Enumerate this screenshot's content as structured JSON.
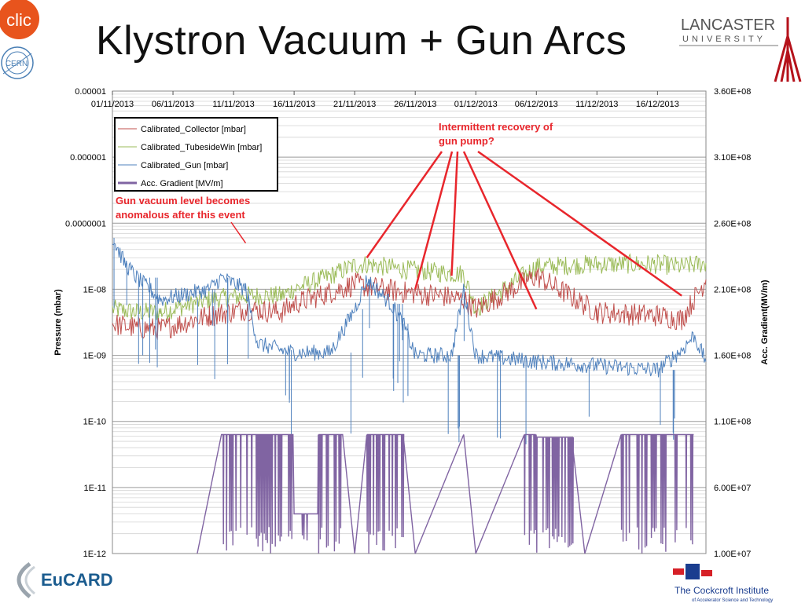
{
  "slide": {
    "title": "Klystron Vacuum + Gun Arcs",
    "logos": {
      "clic": "clic",
      "cern": "CERN",
      "lancaster_line1": "LANCASTER",
      "lancaster_line2": "UNIVERSITY",
      "eucard": "EuCARD",
      "cockcroft_line1": "The Cockcroft Institute",
      "cockcroft_line2": "of Accelerator Science and Technology"
    }
  },
  "colors": {
    "collector": "#c0504d",
    "tubeside": "#9bbb59",
    "gun": "#4f81bd",
    "gradient": "#8064a2",
    "annotation": "#e8262c"
  },
  "chart_data": {
    "type": "line",
    "title": "",
    "xlabel": "",
    "ylabel": "Pressure (mbar)",
    "y2label": "Acc. Gradient(MV/m)",
    "yscale": "log",
    "ylim": [
      1e-12,
      1e-05
    ],
    "y2lim": [
      10000000.0,
      360000000.0
    ],
    "x_ticks": [
      "01/11/2013",
      "06/11/2013",
      "11/11/2013",
      "16/11/2013",
      "21/11/2013",
      "26/11/2013",
      "01/12/2013",
      "06/12/2013",
      "11/12/2013",
      "16/12/2013"
    ],
    "xlim": [
      "01/11/2013",
      "20/12/2013"
    ],
    "x_axis_position": "top",
    "y_ticks": [
      "0.00001",
      "0.000001",
      "0.0000001",
      "1E-08",
      "1E-09",
      "1E-10",
      "1E-11",
      "1E-12"
    ],
    "y2_ticks": [
      "1.00E+07",
      "6.00E+07",
      "1.10E+08",
      "1.60E+08",
      "2.10E+08",
      "2.60E+08",
      "3.10E+08",
      "3.60E+08"
    ],
    "grid": true,
    "legend": {
      "placement": "top-left",
      "entries": [
        "Calibrated_Collector [mbar]",
        "Calibrated_TubesideWin [mbar]",
        "Calibrated_Gun [mbar]",
        "Acc. Gradient [MV/m]"
      ]
    },
    "annotations": [
      {
        "text_lines": [
          "Gun vacuum level becomes",
          "anomalous after this event"
        ],
        "points_to": [
          "12/11/2013",
          5e-08
        ]
      },
      {
        "text_lines": [
          "Intermittent recovery of",
          "gun pump?"
        ],
        "points_to": [
          [
            "22/11/2013",
            3e-08
          ],
          [
            "26/11/2013",
            1e-08
          ],
          [
            "29/11/2013",
            1.6e-08
          ],
          [
            "06/12/2013",
            5e-09
          ],
          [
            "18/12/2013",
            8e-09
          ]
        ]
      }
    ],
    "series": [
      {
        "name": "Calibrated_Collector [mbar]",
        "axis": "left",
        "x": [
          "01/11/2013",
          "03/11/2013",
          "05/11/2013",
          "09/11/2013",
          "12/11/2013",
          "15/11/2013",
          "16/11/2013",
          "19/11/2013",
          "21/11/2013",
          "22/11/2013",
          "25/11/2013",
          "28/11/2013",
          "30/11/2013",
          "01/12/2013",
          "06/12/2013",
          "11/12/2013",
          "16/12/2013",
          "18/12/2013",
          "20/12/2013"
        ],
        "y": [
          3e-09,
          2.6e-09,
          2.5e-09,
          4e-09,
          5e-09,
          4.5e-09,
          6e-09,
          9e-09,
          1.2e-08,
          1.1e-08,
          9e-09,
          8e-09,
          7e-09,
          5e-09,
          1.6e-08,
          4.5e-09,
          4e-09,
          3.5e-09,
          1.4e-08
        ]
      },
      {
        "name": "Calibrated_TubesideWin [mbar]",
        "axis": "left",
        "x": [
          "01/11/2013",
          "03/11/2013",
          "05/11/2013",
          "09/11/2013",
          "12/11/2013",
          "15/11/2013",
          "16/11/2013",
          "19/11/2013",
          "21/11/2013",
          "22/11/2013",
          "25/11/2013",
          "28/11/2013",
          "30/11/2013",
          "01/12/2013",
          "06/12/2013",
          "11/12/2013",
          "16/12/2013",
          "18/12/2013",
          "20/12/2013"
        ],
        "y": [
          5e-09,
          4.5e-09,
          4.5e-09,
          7e-09,
          8e-09,
          8e-09,
          1e-08,
          1.6e-08,
          2.3e-08,
          2.4e-08,
          2e-08,
          1.8e-08,
          1.7e-08,
          5e-09,
          2.2e-08,
          2.4e-08,
          2.4e-08,
          2.2e-08,
          2.5e-08
        ]
      },
      {
        "name": "Calibrated_Gun [mbar]",
        "axis": "left",
        "x": [
          "01/11/2013",
          "02/11/2013",
          "03/11/2013",
          "05/11/2013",
          "09/11/2013",
          "10/11/2013",
          "12/11/2013",
          "13/11/2013",
          "15/11/2013",
          "16/11/2013",
          "19/11/2013",
          "21/11/2013",
          "22/11/2013",
          "24/11/2013",
          "25/11/2013",
          "26/11/2013",
          "29/11/2013",
          "30/11/2013",
          "01/12/2013",
          "06/12/2013",
          "11/12/2013",
          "16/12/2013",
          "18/12/2013",
          "19/12/2013",
          "20/12/2013"
        ],
        "y": [
          6e-08,
          2.5e-08,
          1.5e-08,
          7e-09,
          1e-08,
          1.5e-08,
          1e-08,
          1.5e-09,
          1.2e-09,
          1.1e-09,
          1.1e-09,
          5e-09,
          1.4e-08,
          6e-09,
          3e-09,
          1e-09,
          1e-09,
          1e-08,
          1e-09,
          8e-10,
          7e-10,
          6e-10,
          1.2e-09,
          2e-09,
          8e-10
        ]
      },
      {
        "name": "Acc. Gradient [MV/m]",
        "axis": "right",
        "x": [
          "08/11/2013",
          "10/11/2013",
          "15/11/2013",
          "16/11/2013",
          "18/11/2013",
          "20/11/2013",
          "21/11/2013",
          "22/11/2013",
          "25/11/2013",
          "26/11/2013",
          "30/11/2013",
          "01/12/2013",
          "05/12/2013",
          "06/12/2013",
          "09/12/2013",
          "10/12/2013",
          "13/12/2013",
          "16/12/2013",
          "19/12/2013"
        ],
        "y": [
          0,
          100000000.0,
          100000000.0,
          40000000.0,
          100000000.0,
          100000000.0,
          0,
          100000000.0,
          100000000.0,
          0,
          100000000.0,
          0,
          100000000.0,
          98000000.0,
          91000000.0,
          0,
          100000000.0,
          100000000.0,
          98000000.0
        ]
      }
    ]
  }
}
